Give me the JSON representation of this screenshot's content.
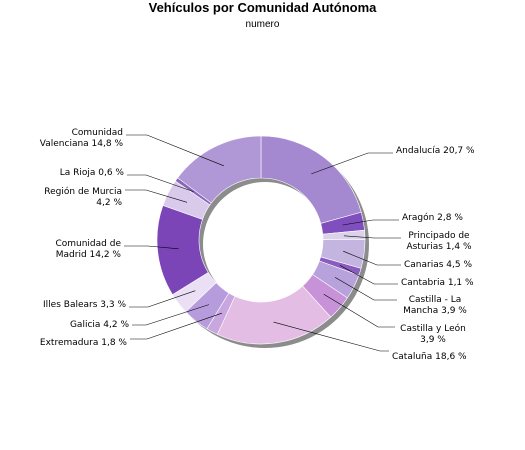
{
  "chart_data": {
    "type": "pie",
    "title": "Vehículos por Comunidad Autónoma",
    "subtitle": "numero",
    "slices": [
      {
        "label": "Andalucía 20,7 %",
        "value": 20.7,
        "color": "#a589d0"
      },
      {
        "label": "Aragón 2,8 %",
        "value": 2.8,
        "color": "#7e4fbd"
      },
      {
        "label": "Principado de Asturias 1,4 %",
        "value": 1.4,
        "color": "#dcd2ec"
      },
      {
        "label": "Canarias 4,5 %",
        "value": 4.5,
        "color": "#c4b4e0"
      },
      {
        "label": "Cantabria 1,1 %",
        "value": 1.1,
        "color": "#8a5cc0"
      },
      {
        "label": "Castilla - La Mancha 3,9 %",
        "value": 3.9,
        "color": "#b8a2dc"
      },
      {
        "label": "Castilla y León 3,9 %",
        "value": 3.9,
        "color": "#c792d8"
      },
      {
        "label": "Cataluña 18,6 %",
        "value": 18.6,
        "color": "#e4bde4"
      },
      {
        "label": "Extremadura 1,8 %",
        "value": 1.8,
        "color": "#c8a6e0"
      },
      {
        "label": "Galicia 4,2 %",
        "value": 4.2,
        "color": "#b69cdc"
      },
      {
        "label": "Illes Balears 3,3 %",
        "value": 3.3,
        "color": "#eadff4"
      },
      {
        "label": "Comunidad de Madrid 14,2 %",
        "value": 14.2,
        "color": "#7b45b8"
      },
      {
        "label": "Región de Murcia 4,2 %",
        "value": 4.2,
        "color": "#d9c9ea"
      },
      {
        "label": "La Rioja 0,6 %",
        "value": 0.6,
        "color": "#8a66bc"
      },
      {
        "label": "Comunidad Valenciana 14,8 %",
        "value": 14.8,
        "color": "#b098d6"
      }
    ]
  }
}
